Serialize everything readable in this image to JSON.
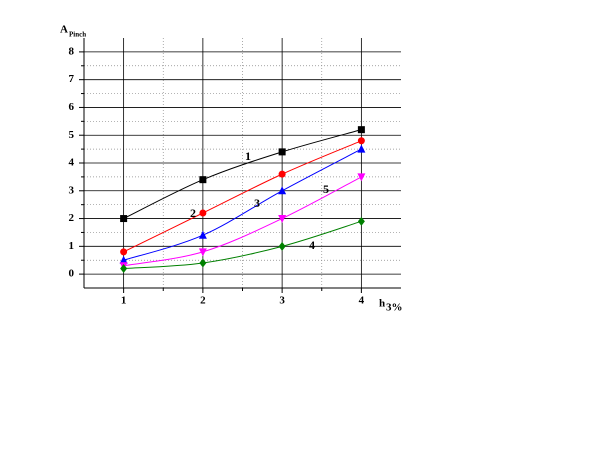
{
  "chart_data": {
    "type": "line",
    "x": [
      1,
      2,
      3,
      4
    ],
    "xlim": [
      0.5,
      4.5
    ],
    "ylim": [
      -0.5,
      8.5
    ],
    "xticks": [
      1,
      2,
      3,
      4
    ],
    "yticks": [
      0,
      1,
      2,
      3,
      4,
      5,
      6,
      7,
      8
    ],
    "xminor": [
      1.5,
      2.5,
      3.5
    ],
    "yminor": [
      0.5,
      1.5,
      2.5,
      3.5,
      4.5,
      5.5,
      6.5,
      7.5
    ],
    "xlabel": {
      "main": "h",
      "sub": "3%"
    },
    "ylabel": {
      "main": "A",
      "sub": "Pinch"
    },
    "grid": true,
    "series": [
      {
        "name": "1",
        "color": "#000000",
        "marker": "square",
        "values": [
          2.0,
          3.4,
          4.4,
          5.2
        ]
      },
      {
        "name": "2",
        "color": "#ff0000",
        "marker": "circle",
        "values": [
          0.8,
          2.2,
          3.6,
          4.8
        ]
      },
      {
        "name": "3",
        "color": "#0000ff",
        "marker": "triangle-up",
        "values": [
          0.5,
          1.4,
          3.0,
          4.5
        ]
      },
      {
        "name": "5",
        "color": "#ff00ff",
        "marker": "triangle-down",
        "values": [
          0.3,
          0.8,
          2.0,
          3.5
        ]
      },
      {
        "name": "4",
        "color": "#008000",
        "marker": "diamond",
        "values": [
          0.2,
          0.4,
          1.0,
          1.9
        ]
      }
    ]
  }
}
